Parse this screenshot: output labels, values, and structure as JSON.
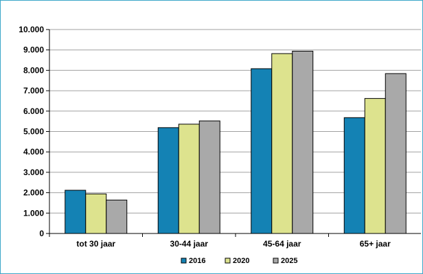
{
  "chart_data": {
    "type": "bar",
    "categories": [
      "tot 30 jaar",
      "30-44 jaar",
      "45-64 jaar",
      "65+ jaar"
    ],
    "series": [
      {
        "name": "2016",
        "color": "#1482b4",
        "values": [
          2120,
          5190,
          8080,
          5680
        ]
      },
      {
        "name": "2020",
        "color": "#dde38e",
        "values": [
          1940,
          5360,
          8820,
          6620
        ]
      },
      {
        "name": "2025",
        "color": "#a9a9a9",
        "values": [
          1640,
          5520,
          8940,
          7840
        ]
      }
    ],
    "ylim": [
      0,
      10000
    ],
    "y_ticks": [
      "0",
      "1.000",
      "2.000",
      "3.000",
      "4.000",
      "5.000",
      "6.000",
      "7.000",
      "8.000",
      "9.000",
      "10.000"
    ],
    "grid": true,
    "legend_position": "bottom",
    "title": "",
    "xlabel": "",
    "ylabel": ""
  }
}
